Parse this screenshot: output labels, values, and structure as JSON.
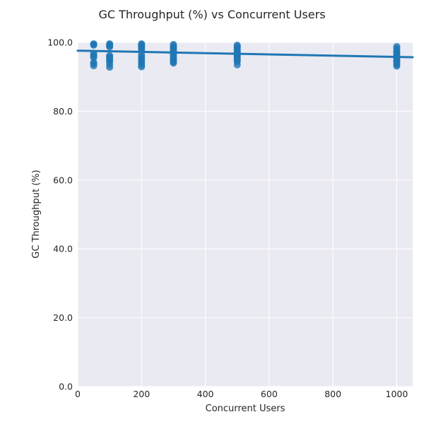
{
  "chart_data": {
    "type": "scatter",
    "title": "GC Throughput (%) vs Concurrent Users",
    "xlabel": "Concurrent Users",
    "ylabel": "GC Throughput (%)",
    "xlim": [
      0,
      1050
    ],
    "ylim": [
      0,
      100
    ],
    "xticks": [
      0,
      200,
      400,
      600,
      800,
      1000
    ],
    "xtick_labels": [
      "0",
      "200",
      "400",
      "600",
      "800",
      "1000"
    ],
    "yticks": [
      0,
      20,
      40,
      60,
      80,
      100
    ],
    "ytick_labels": [
      "0.0",
      "20.0",
      "40.0",
      "60.0",
      "80.0",
      "100.0"
    ],
    "grid": true,
    "colors": {
      "background": "#eaeaf2",
      "grid": "#ffffff",
      "points": "#1f77b4",
      "trend": "#1f77b4"
    },
    "series": [
      {
        "points": [
          [
            50,
            99.6
          ],
          [
            50,
            99.4
          ],
          [
            50,
            99.2
          ],
          [
            50,
            96.8
          ],
          [
            50,
            96.4
          ],
          [
            50,
            96.0
          ],
          [
            50,
            95.6
          ],
          [
            50,
            94.2
          ],
          [
            50,
            93.8
          ],
          [
            50,
            93.2
          ],
          [
            100,
            99.6
          ],
          [
            100,
            99.3
          ],
          [
            100,
            99.0
          ],
          [
            100,
            98.7
          ],
          [
            100,
            96.2
          ],
          [
            100,
            95.8
          ],
          [
            100,
            95.4
          ],
          [
            100,
            94.8
          ],
          [
            100,
            94.4
          ],
          [
            100,
            93.6
          ],
          [
            100,
            92.8
          ],
          [
            200,
            99.6
          ],
          [
            200,
            99.3
          ],
          [
            200,
            99.0
          ],
          [
            200,
            98.6
          ],
          [
            200,
            98.2
          ],
          [
            200,
            97.6
          ],
          [
            200,
            96.4
          ],
          [
            200,
            95.8
          ],
          [
            200,
            95.2
          ],
          [
            200,
            94.6
          ],
          [
            200,
            94.0
          ],
          [
            200,
            93.4
          ],
          [
            200,
            92.9
          ],
          [
            300,
            99.4
          ],
          [
            300,
            99.0
          ],
          [
            300,
            98.6
          ],
          [
            300,
            98.2
          ],
          [
            300,
            97.8
          ],
          [
            300,
            97.4
          ],
          [
            300,
            97.0
          ],
          [
            300,
            96.6
          ],
          [
            300,
            96.2
          ],
          [
            300,
            95.6
          ],
          [
            300,
            95.2
          ],
          [
            300,
            94.8
          ],
          [
            300,
            94.3
          ],
          [
            300,
            94.0
          ],
          [
            500,
            99.2
          ],
          [
            500,
            98.8
          ],
          [
            500,
            98.4
          ],
          [
            500,
            98.0
          ],
          [
            500,
            97.6
          ],
          [
            500,
            97.2
          ],
          [
            500,
            96.8
          ],
          [
            500,
            96.4
          ],
          [
            500,
            96.0
          ],
          [
            500,
            95.6
          ],
          [
            500,
            95.2
          ],
          [
            500,
            94.8
          ],
          [
            500,
            94.4
          ],
          [
            500,
            93.5
          ],
          [
            1000,
            98.8
          ],
          [
            1000,
            98.2
          ],
          [
            1000,
            97.6
          ],
          [
            1000,
            97.2
          ],
          [
            1000,
            96.8
          ],
          [
            1000,
            96.4
          ],
          [
            1000,
            96.0
          ],
          [
            1000,
            95.6
          ],
          [
            1000,
            95.2
          ],
          [
            1000,
            94.8
          ],
          [
            1000,
            94.4
          ],
          [
            1000,
            94.0
          ],
          [
            1000,
            93.6
          ],
          [
            1000,
            93.1
          ]
        ]
      }
    ],
    "trendline": {
      "x": [
        0,
        1050
      ],
      "y": [
        97.6,
        95.7
      ]
    }
  }
}
